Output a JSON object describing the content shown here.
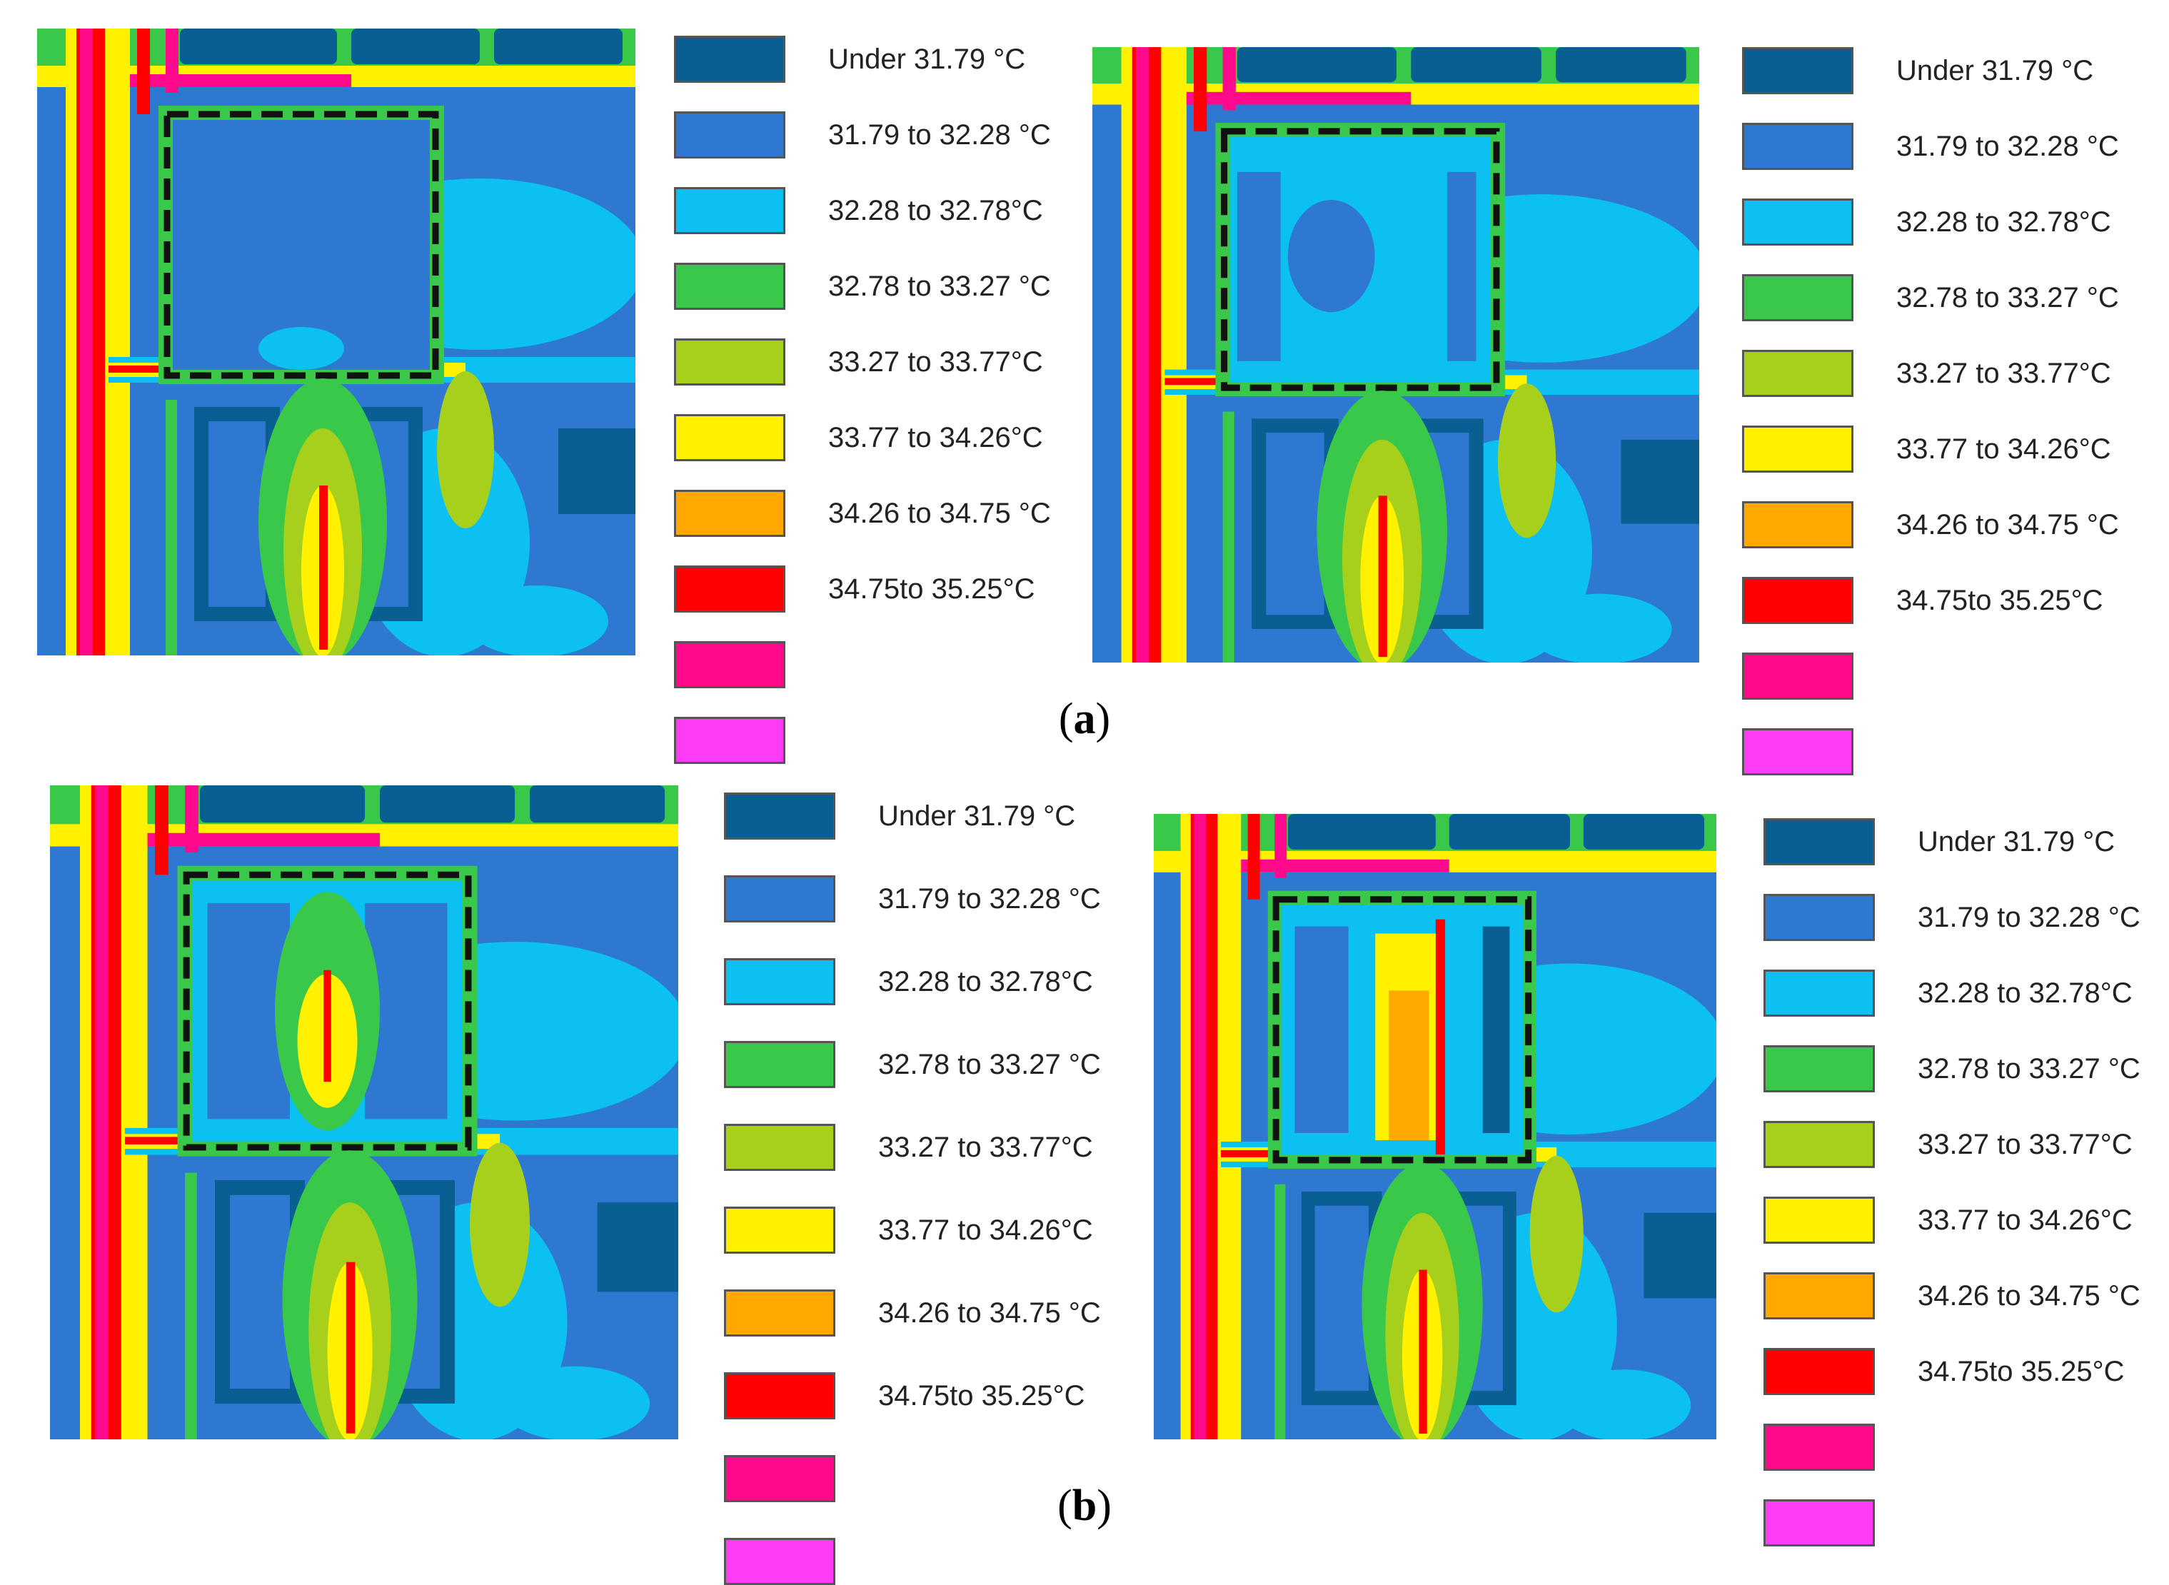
{
  "chart_data": {
    "type": "heatmap",
    "title": "",
    "legend_title": "",
    "legend": [
      {
        "label": "Under 31.79 °C",
        "color": "#0a5f92"
      },
      {
        "label": "31.79 to 32.28 °C",
        "color": "#2f78d1"
      },
      {
        "label": "32.28 to 32.78°C",
        "color": "#0cc0f2"
      },
      {
        "label": "32.78 to 33.27 °C",
        "color": "#39c84a"
      },
      {
        "label": "33.27 to 33.77°C",
        "color": "#a6d01c"
      },
      {
        "label": "33.77 to 34.26°C",
        "color": "#fff100"
      },
      {
        "label": "34.26 to 34.75 °C",
        "color": "#ffa800"
      },
      {
        "label": "34.75to 35.25°C",
        "color": "#ff0000"
      }
    ],
    "extra_swatches": [
      "#ff0a8c",
      "#ff3cf5"
    ],
    "panels": [
      {
        "id": "a-left",
        "zone": "blocked"
      },
      {
        "id": "a-right",
        "zone": "open-sides"
      },
      {
        "id": "b-left",
        "zone": "open-center"
      },
      {
        "id": "b-right",
        "zone": "open-channel"
      }
    ]
  },
  "captions": {
    "a": "a",
    "b": "b"
  }
}
